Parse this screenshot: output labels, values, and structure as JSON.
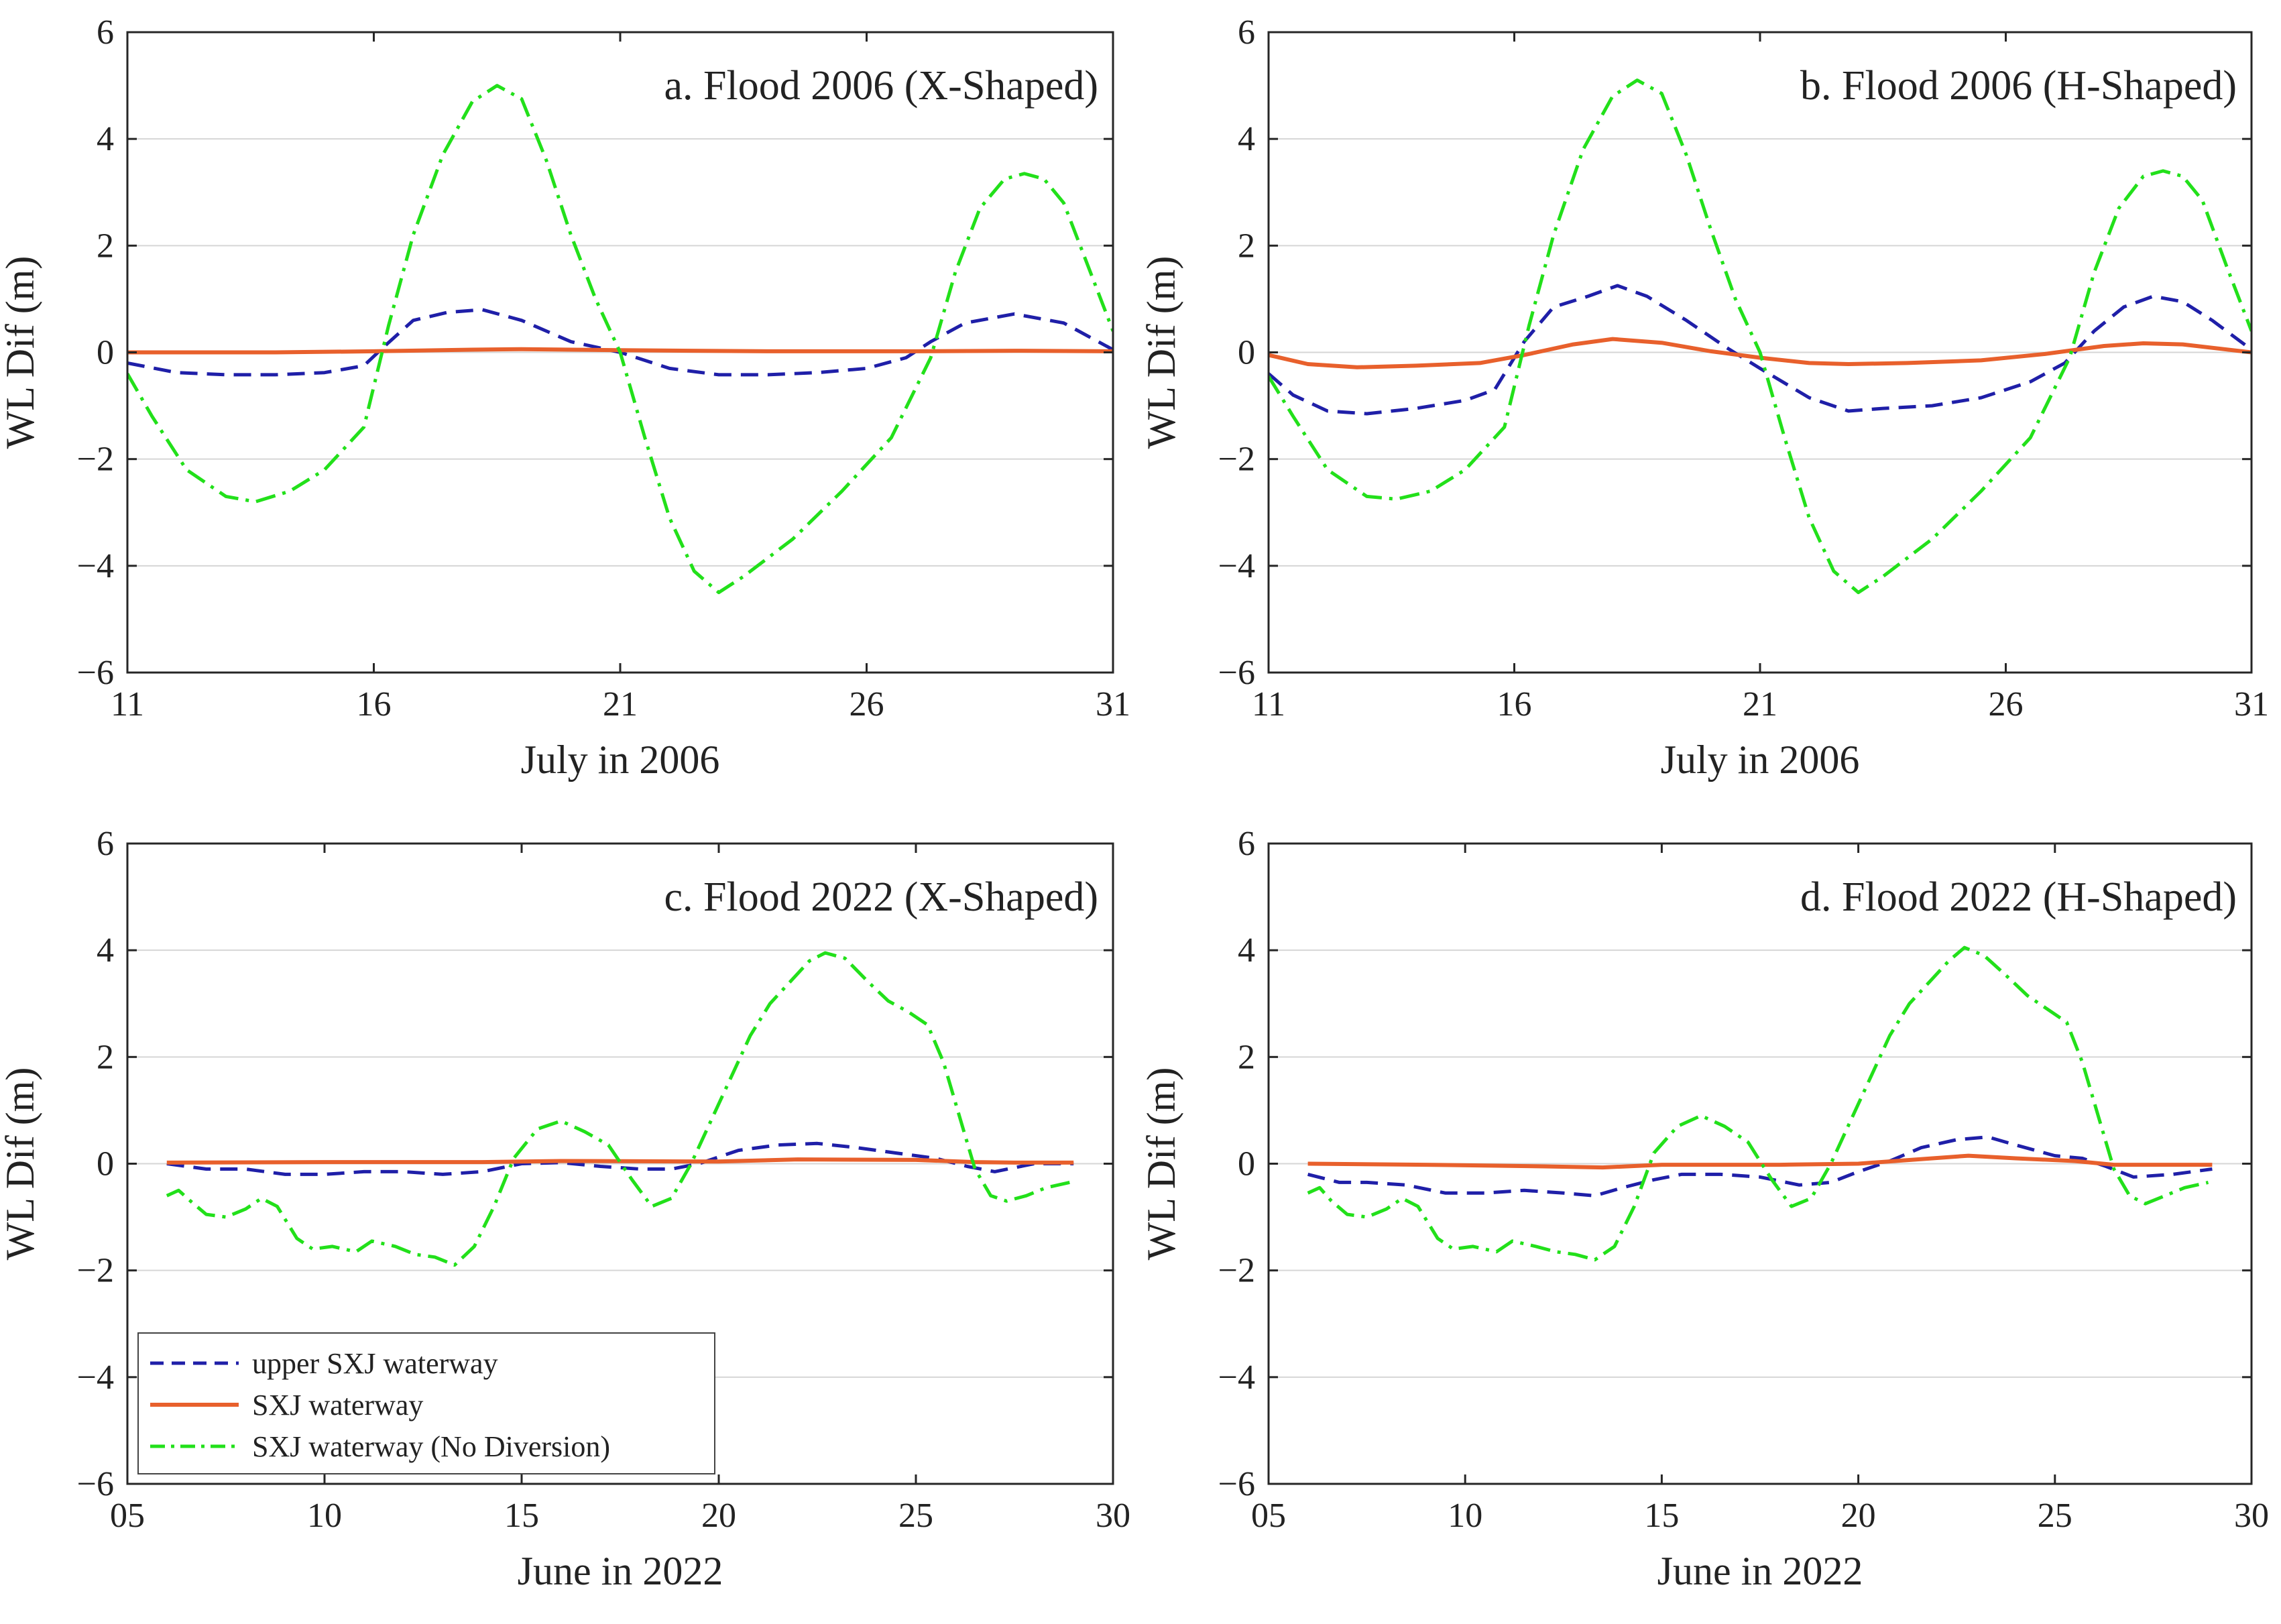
{
  "chart_data": [
    {
      "type": "line",
      "title": "a. Flood 2006 (X-Shaped)",
      "xlabel": "July in 2006",
      "ylabel": "WL Dif (m)",
      "xlim": [
        11,
        31
      ],
      "ylim": [
        -6,
        6
      ],
      "xticks": [
        11,
        16,
        21,
        26,
        31
      ],
      "xtick_labels": [
        "11",
        "16",
        "21",
        "26",
        "31"
      ],
      "yticks": [
        -6,
        -4,
        -2,
        0,
        2,
        4,
        6
      ],
      "ytick_labels": [
        "−6",
        "−4",
        "−2",
        "0",
        "2",
        "4",
        "6"
      ],
      "grid": "horizontal",
      "series": [
        {
          "name": "upper SXJ waterway",
          "style": "dashed",
          "color": "#1f1fa8",
          "x": [
            11,
            12,
            13,
            14,
            15,
            15.8,
            16.2,
            16.8,
            17.5,
            18.2,
            19,
            20,
            21,
            22,
            23,
            24,
            25,
            26,
            26.8,
            27.3,
            28,
            29,
            30,
            31
          ],
          "y": [
            -0.2,
            -0.38,
            -0.42,
            -0.42,
            -0.38,
            -0.25,
            0.1,
            0.6,
            0.75,
            0.8,
            0.6,
            0.2,
            0,
            -0.3,
            -0.42,
            -0.42,
            -0.38,
            -0.3,
            -0.1,
            0.2,
            0.55,
            0.72,
            0.55,
            0.05
          ]
        },
        {
          "name": "SXJ waterway",
          "style": "solid",
          "color": "#e8602c",
          "x": [
            11,
            14,
            16,
            18,
            19,
            21,
            24,
            27,
            29,
            31
          ],
          "y": [
            0,
            0,
            0.02,
            0.05,
            0.06,
            0.04,
            0.02,
            0.02,
            0.03,
            0.02
          ]
        },
        {
          "name": "SXJ waterway (No Diversion)",
          "style": "dash-dot",
          "color": "#22e01a",
          "x": [
            11,
            11.5,
            12.2,
            13,
            13.6,
            14.3,
            15,
            15.8,
            16.3,
            16.8,
            17.4,
            18,
            18.5,
            19,
            19.5,
            20,
            20.5,
            21,
            21.5,
            22,
            22.5,
            23,
            23.5,
            24.5,
            25.5,
            26.5,
            27.3,
            27.8,
            28.3,
            28.8,
            29.2,
            29.6,
            30,
            30.5,
            31
          ],
          "y": [
            -0.4,
            -1.2,
            -2.2,
            -2.7,
            -2.8,
            -2.6,
            -2.2,
            -1.4,
            0.5,
            2.2,
            3.7,
            4.7,
            5.0,
            4.75,
            3.6,
            2.2,
            1.0,
            0,
            -1.6,
            -3.1,
            -4.1,
            -4.5,
            -4.2,
            -3.5,
            -2.6,
            -1.6,
            -0.1,
            1.5,
            2.7,
            3.25,
            3.35,
            3.25,
            2.8,
            1.6,
            0.4
          ]
        }
      ]
    },
    {
      "type": "line",
      "title": "b. Flood 2006 (H-Shaped)",
      "xlabel": "July in 2006",
      "ylabel": "WL Dif (m)",
      "xlim": [
        11,
        31
      ],
      "ylim": [
        -6,
        6
      ],
      "xticks": [
        11,
        16,
        21,
        26,
        31
      ],
      "xtick_labels": [
        "11",
        "16",
        "21",
        "26",
        "31"
      ],
      "yticks": [
        -6,
        -4,
        -2,
        0,
        2,
        4,
        6
      ],
      "ytick_labels": [
        "−6",
        "−4",
        "−2",
        "0",
        "2",
        "4",
        "6"
      ],
      "grid": "horizontal",
      "series": [
        {
          "name": "upper SXJ waterway",
          "style": "dashed",
          "color": "#1f1fa8",
          "x": [
            11,
            11.5,
            12.2,
            13,
            14,
            15,
            15.6,
            16.2,
            16.8,
            17.5,
            18.1,
            18.7,
            19.5,
            20.3,
            21,
            22,
            22.8,
            23.5,
            24.5,
            25.5,
            26.5,
            27.2,
            27.8,
            28.4,
            29,
            29.6,
            30.2,
            31
          ],
          "y": [
            -0.4,
            -0.8,
            -1.1,
            -1.15,
            -1.05,
            -0.9,
            -0.7,
            0.2,
            0.85,
            1.05,
            1.25,
            1.05,
            0.6,
            0.1,
            -0.3,
            -0.85,
            -1.1,
            -1.05,
            -1.0,
            -0.85,
            -0.55,
            -0.2,
            0.4,
            0.85,
            1.05,
            0.95,
            0.6,
            0.05
          ]
        },
        {
          "name": "SXJ waterway",
          "style": "solid",
          "color": "#e8602c",
          "x": [
            11,
            11.8,
            12.8,
            14,
            15.3,
            16.2,
            17.2,
            18,
            19,
            20,
            21,
            22,
            22.8,
            24,
            25.5,
            26.8,
            28,
            28.8,
            29.6,
            31
          ],
          "y": [
            -0.05,
            -0.22,
            -0.28,
            -0.25,
            -0.2,
            -0.05,
            0.15,
            0.25,
            0.18,
            0.02,
            -0.1,
            -0.2,
            -0.22,
            -0.2,
            -0.15,
            -0.03,
            0.12,
            0.17,
            0.15,
            0.0
          ]
        },
        {
          "name": "SXJ waterway (No Diversion)",
          "style": "dash-dot",
          "color": "#22e01a",
          "x": [
            11,
            11.5,
            12.2,
            13,
            13.6,
            14.3,
            15,
            15.8,
            16.3,
            16.8,
            17.4,
            18,
            18.5,
            19,
            19.5,
            20,
            20.5,
            21,
            21.5,
            22,
            22.5,
            23,
            23.5,
            24.5,
            25.5,
            26.5,
            27.3,
            27.8,
            28.3,
            28.8,
            29.2,
            29.6,
            30,
            30.5,
            31
          ],
          "y": [
            -0.45,
            -1.2,
            -2.2,
            -2.7,
            -2.75,
            -2.6,
            -2.2,
            -1.4,
            0.5,
            2.2,
            3.8,
            4.8,
            5.1,
            4.85,
            3.7,
            2.3,
            1.0,
            0,
            -1.6,
            -3.1,
            -4.1,
            -4.5,
            -4.2,
            -3.5,
            -2.6,
            -1.6,
            -0.1,
            1.5,
            2.7,
            3.3,
            3.4,
            3.3,
            2.85,
            1.6,
            0.4
          ]
        }
      ]
    },
    {
      "type": "line",
      "title": "c. Flood 2022 (X-Shaped)",
      "xlabel": "June in 2022",
      "ylabel": "WL Dif (m)",
      "xlim": [
        5,
        30
      ],
      "ylim": [
        -6,
        6
      ],
      "xticks": [
        5,
        10,
        15,
        20,
        25,
        30
      ],
      "xtick_labels": [
        "05",
        "10",
        "15",
        "20",
        "25",
        "30"
      ],
      "yticks": [
        -6,
        -4,
        -2,
        0,
        2,
        4,
        6
      ],
      "ytick_labels": [
        "−6",
        "−4",
        "−2",
        "0",
        "2",
        "4",
        "6"
      ],
      "grid": "horizontal",
      "legend": {
        "position": "bottom-left",
        "entries": [
          "upper SXJ waterway",
          "SXJ waterway",
          "SXJ waterway (No Diversion)"
        ]
      },
      "series": [
        {
          "name": "upper SXJ waterway",
          "style": "dashed",
          "color": "#1f1fa8",
          "x": [
            6,
            7,
            8,
            9,
            10,
            11,
            12,
            13,
            14,
            15,
            16,
            17,
            18,
            18.8,
            19.5,
            20.5,
            21.5,
            22.5,
            23.5,
            24.5,
            25.5,
            26.3,
            27,
            28,
            29
          ],
          "y": [
            0,
            -0.1,
            -0.1,
            -0.2,
            -0.2,
            -0.15,
            -0.15,
            -0.2,
            -0.15,
            0,
            0.02,
            -0.05,
            -0.1,
            -0.1,
            0.0,
            0.25,
            0.35,
            0.38,
            0.3,
            0.2,
            0.1,
            -0.05,
            -0.15,
            0,
            0
          ]
        },
        {
          "name": "SXJ waterway",
          "style": "solid",
          "color": "#e8602c",
          "x": [
            6,
            10,
            14,
            16,
            20,
            22,
            25,
            26.5,
            27.5,
            29
          ],
          "y": [
            0.02,
            0.03,
            0.03,
            0.05,
            0.04,
            0.08,
            0.07,
            0.03,
            0.02,
            0.02
          ]
        },
        {
          "name": "SXJ waterway (No Diversion)",
          "style": "dash-dot",
          "color": "#22e01a",
          "x": [
            6,
            6.3,
            6.6,
            7,
            7.5,
            8,
            8.4,
            8.8,
            9.3,
            9.7,
            10.2,
            10.8,
            11.2,
            11.8,
            12.3,
            12.8,
            13.3,
            13.8,
            14.3,
            14.8,
            15.4,
            16,
            16.6,
            17.2,
            17.8,
            18.3,
            18.8,
            19.3,
            19.8,
            20.3,
            20.8,
            21.3,
            21.8,
            22.3,
            22.7,
            23.2,
            23.8,
            24.3,
            24.8,
            25.3,
            25.7,
            26.1,
            26.5,
            26.9,
            27.3,
            27.8,
            28.3,
            28.9
          ],
          "y": [
            -0.6,
            -0.5,
            -0.7,
            -0.95,
            -1.0,
            -0.85,
            -0.65,
            -0.8,
            -1.4,
            -1.6,
            -1.55,
            -1.65,
            -1.45,
            -1.55,
            -1.7,
            -1.75,
            -1.9,
            -1.55,
            -0.8,
            0.1,
            0.65,
            0.8,
            0.6,
            0.35,
            -0.3,
            -0.8,
            -0.65,
            0.0,
            0.8,
            1.6,
            2.4,
            3.0,
            3.4,
            3.8,
            3.95,
            3.85,
            3.4,
            3.05,
            2.85,
            2.6,
            1.9,
            0.9,
            -0.1,
            -0.6,
            -0.7,
            -0.6,
            -0.45,
            -0.35
          ]
        }
      ]
    },
    {
      "type": "line",
      "title": "d. Flood 2022 (H-Shaped)",
      "xlabel": "June in 2022",
      "ylabel": "WL Dif (m)",
      "xlim": [
        5,
        30
      ],
      "ylim": [
        -6,
        6
      ],
      "xticks": [
        5,
        10,
        15,
        20,
        25,
        30
      ],
      "xtick_labels": [
        "05",
        "10",
        "15",
        "20",
        "25",
        "30"
      ],
      "yticks": [
        -6,
        -4,
        -2,
        0,
        2,
        4,
        6
      ],
      "ytick_labels": [
        "−6",
        "−4",
        "−2",
        "0",
        "2",
        "4",
        "6"
      ],
      "grid": "horizontal",
      "series": [
        {
          "name": "upper SXJ waterway",
          "style": "dashed",
          "color": "#1f1fa8",
          "x": [
            6,
            6.8,
            7.5,
            8.5,
            9.5,
            10.5,
            11.5,
            12.5,
            13.3,
            14,
            14.8,
            15.5,
            16.5,
            17.5,
            18.5,
            19.3,
            20,
            20.8,
            21.6,
            22.5,
            23.3,
            24,
            25,
            25.7,
            26.3,
            27,
            28,
            29
          ],
          "y": [
            -0.2,
            -0.35,
            -0.35,
            -0.4,
            -0.55,
            -0.55,
            -0.5,
            -0.55,
            -0.6,
            -0.45,
            -0.3,
            -0.2,
            -0.2,
            -0.25,
            -0.4,
            -0.35,
            -0.15,
            0.05,
            0.3,
            0.45,
            0.5,
            0.35,
            0.15,
            0.1,
            -0.05,
            -0.25,
            -0.2,
            -0.1
          ]
        },
        {
          "name": "SXJ waterway",
          "style": "solid",
          "color": "#e8602c",
          "x": [
            6,
            9,
            12,
            13.5,
            15,
            18,
            20,
            21.5,
            22.8,
            24,
            25.5,
            26.5,
            27.5,
            29
          ],
          "y": [
            0,
            -0.02,
            -0.05,
            -0.07,
            -0.02,
            -0.02,
            0.0,
            0.08,
            0.15,
            0.1,
            0.05,
            -0.02,
            -0.02,
            -0.02
          ]
        },
        {
          "name": "SXJ waterway (No Diversion)",
          "style": "dash-dot",
          "color": "#22e01a",
          "x": [
            6,
            6.3,
            6.6,
            7,
            7.5,
            8,
            8.4,
            8.8,
            9.3,
            9.7,
            10.2,
            10.8,
            11.2,
            11.8,
            12.3,
            12.8,
            13.3,
            13.8,
            14.3,
            14.8,
            15.4,
            16,
            16.6,
            17.2,
            17.8,
            18.3,
            18.8,
            19.3,
            19.8,
            20.3,
            20.8,
            21.3,
            21.8,
            22.3,
            22.7,
            23.2,
            23.8,
            24.3,
            24.8,
            25.3,
            25.7,
            26.1,
            26.5,
            26.9,
            27.3,
            27.8,
            28.3,
            28.9
          ],
          "y": [
            -0.55,
            -0.45,
            -0.7,
            -0.95,
            -1.0,
            -0.85,
            -0.65,
            -0.8,
            -1.4,
            -1.6,
            -1.55,
            -1.65,
            -1.45,
            -1.55,
            -1.65,
            -1.7,
            -1.8,
            -1.55,
            -0.8,
            0.2,
            0.7,
            0.9,
            0.7,
            0.4,
            -0.3,
            -0.8,
            -0.65,
            0.0,
            0.8,
            1.6,
            2.4,
            3.0,
            3.4,
            3.8,
            4.05,
            3.9,
            3.5,
            3.15,
            2.9,
            2.65,
            1.9,
            0.9,
            -0.1,
            -0.6,
            -0.75,
            -0.6,
            -0.45,
            -0.35
          ]
        }
      ]
    }
  ]
}
